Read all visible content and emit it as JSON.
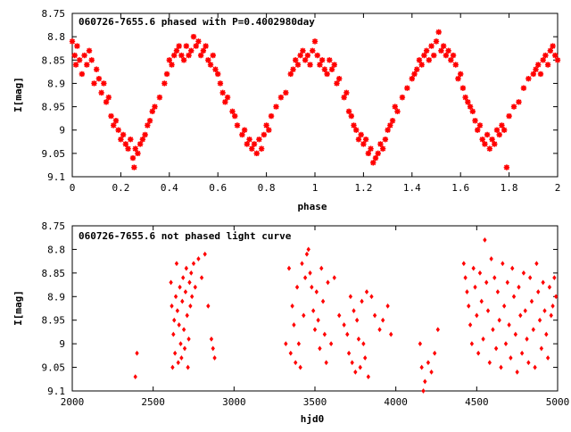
{
  "chart_data": [
    {
      "type": "scatter",
      "title": "060726-7655.6 phased with P=0.4002980day",
      "xlabel": "phase",
      "ylabel": "I[mag]",
      "xlim": [
        0,
        2
      ],
      "ylim": [
        8.75,
        9.1
      ],
      "y_inverted": true,
      "grid": false,
      "marker_color": "#ff0000",
      "marker": "star",
      "x_ticks": [
        0,
        0.2,
        0.4,
        0.6,
        0.8,
        1,
        1.2,
        1.4,
        1.6,
        1.8,
        2
      ],
      "y_ticks": [
        8.75,
        8.8,
        8.85,
        8.9,
        8.95,
        9,
        9.05,
        9.1
      ],
      "x_tick_labels": [
        "0",
        "0.2",
        "0.4",
        "0.6",
        "0.8",
        "1",
        "1.2",
        "1.4",
        "1.6",
        "1.8",
        "2"
      ],
      "y_tick_labels": [
        "8.75",
        "8.8",
        "8.85",
        "8.9",
        "8.95",
        "9",
        "9.05",
        "9.1"
      ],
      "points": [
        [
          0.0,
          8.81
        ],
        [
          0.01,
          8.84
        ],
        [
          0.015,
          8.86
        ],
        [
          0.02,
          8.82
        ],
        [
          0.03,
          8.85
        ],
        [
          0.04,
          8.88
        ],
        [
          0.05,
          8.84
        ],
        [
          0.06,
          8.86
        ],
        [
          0.07,
          8.83
        ],
        [
          0.08,
          8.85
        ],
        [
          0.09,
          8.9
        ],
        [
          0.1,
          8.87
        ],
        [
          0.11,
          8.89
        ],
        [
          0.12,
          8.92
        ],
        [
          0.13,
          8.9
        ],
        [
          0.14,
          8.94
        ],
        [
          0.15,
          8.93
        ],
        [
          0.16,
          8.97
        ],
        [
          0.17,
          8.99
        ],
        [
          0.18,
          8.98
        ],
        [
          0.19,
          9.0
        ],
        [
          0.2,
          9.02
        ],
        [
          0.21,
          9.01
        ],
        [
          0.22,
          9.03
        ],
        [
          0.23,
          9.04
        ],
        [
          0.24,
          9.02
        ],
        [
          0.25,
          9.06
        ],
        [
          0.255,
          9.08
        ],
        [
          0.26,
          9.04
        ],
        [
          0.27,
          9.05
        ],
        [
          0.28,
          9.03
        ],
        [
          0.29,
          9.02
        ],
        [
          0.3,
          9.01
        ],
        [
          0.31,
          8.99
        ],
        [
          0.32,
          8.98
        ],
        [
          0.33,
          8.96
        ],
        [
          0.34,
          8.95
        ],
        [
          0.36,
          8.93
        ],
        [
          0.38,
          8.9
        ],
        [
          0.39,
          8.88
        ],
        [
          0.4,
          8.85
        ],
        [
          0.41,
          8.86
        ],
        [
          0.42,
          8.84
        ],
        [
          0.43,
          8.83
        ],
        [
          0.44,
          8.82
        ],
        [
          0.45,
          8.84
        ],
        [
          0.46,
          8.85
        ],
        [
          0.47,
          8.82
        ],
        [
          0.48,
          8.84
        ],
        [
          0.49,
          8.83
        ],
        [
          0.5,
          8.8
        ],
        [
          0.51,
          8.82
        ],
        [
          0.52,
          8.81
        ],
        [
          0.53,
          8.84
        ],
        [
          0.54,
          8.83
        ],
        [
          0.55,
          8.82
        ],
        [
          0.56,
          8.85
        ],
        [
          0.57,
          8.86
        ],
        [
          0.58,
          8.84
        ],
        [
          0.59,
          8.87
        ],
        [
          0.6,
          8.88
        ],
        [
          0.61,
          8.9
        ],
        [
          0.62,
          8.92
        ],
        [
          0.63,
          8.94
        ],
        [
          0.64,
          8.93
        ],
        [
          0.66,
          8.96
        ],
        [
          0.67,
          8.97
        ],
        [
          0.68,
          8.99
        ],
        [
          0.7,
          9.01
        ],
        [
          0.71,
          9.0
        ],
        [
          0.72,
          9.03
        ],
        [
          0.73,
          9.02
        ],
        [
          0.74,
          9.04
        ],
        [
          0.75,
          9.03
        ],
        [
          0.76,
          9.05
        ],
        [
          0.77,
          9.02
        ],
        [
          0.78,
          9.04
        ],
        [
          0.79,
          9.01
        ],
        [
          0.8,
          8.99
        ],
        [
          0.81,
          9.0
        ],
        [
          0.82,
          8.97
        ],
        [
          0.84,
          8.95
        ],
        [
          0.86,
          8.93
        ],
        [
          0.88,
          8.92
        ],
        [
          0.9,
          8.88
        ],
        [
          0.91,
          8.87
        ],
        [
          0.92,
          8.85
        ],
        [
          0.93,
          8.86
        ],
        [
          0.94,
          8.84
        ],
        [
          0.95,
          8.83
        ],
        [
          0.96,
          8.85
        ],
        [
          0.97,
          8.84
        ],
        [
          0.98,
          8.86
        ],
        [
          0.99,
          8.83
        ],
        [
          1.0,
          8.81
        ],
        [
          1.01,
          8.84
        ],
        [
          1.02,
          8.86
        ],
        [
          1.03,
          8.85
        ],
        [
          1.04,
          8.87
        ],
        [
          1.05,
          8.88
        ],
        [
          1.06,
          8.85
        ],
        [
          1.07,
          8.87
        ],
        [
          1.08,
          8.86
        ],
        [
          1.09,
          8.9
        ],
        [
          1.1,
          8.89
        ],
        [
          1.12,
          8.93
        ],
        [
          1.13,
          8.92
        ],
        [
          1.14,
          8.96
        ],
        [
          1.15,
          8.97
        ],
        [
          1.16,
          8.99
        ],
        [
          1.17,
          9.0
        ],
        [
          1.18,
          9.02
        ],
        [
          1.19,
          9.01
        ],
        [
          1.2,
          9.03
        ],
        [
          1.21,
          9.02
        ],
        [
          1.22,
          9.05
        ],
        [
          1.23,
          9.04
        ],
        [
          1.24,
          9.07
        ],
        [
          1.25,
          9.06
        ],
        [
          1.26,
          9.05
        ],
        [
          1.27,
          9.03
        ],
        [
          1.28,
          9.04
        ],
        [
          1.29,
          9.02
        ],
        [
          1.3,
          9.0
        ],
        [
          1.31,
          8.99
        ],
        [
          1.32,
          8.98
        ],
        [
          1.33,
          8.95
        ],
        [
          1.34,
          8.96
        ],
        [
          1.36,
          8.93
        ],
        [
          1.38,
          8.91
        ],
        [
          1.4,
          8.89
        ],
        [
          1.41,
          8.88
        ],
        [
          1.42,
          8.87
        ],
        [
          1.43,
          8.85
        ],
        [
          1.44,
          8.86
        ],
        [
          1.45,
          8.84
        ],
        [
          1.46,
          8.83
        ],
        [
          1.47,
          8.85
        ],
        [
          1.48,
          8.82
        ],
        [
          1.49,
          8.84
        ],
        [
          1.5,
          8.81
        ],
        [
          1.51,
          8.79
        ],
        [
          1.52,
          8.83
        ],
        [
          1.53,
          8.82
        ],
        [
          1.54,
          8.84
        ],
        [
          1.55,
          8.83
        ],
        [
          1.56,
          8.85
        ],
        [
          1.57,
          8.84
        ],
        [
          1.58,
          8.86
        ],
        [
          1.59,
          8.89
        ],
        [
          1.6,
          8.88
        ],
        [
          1.61,
          8.91
        ],
        [
          1.62,
          8.93
        ],
        [
          1.63,
          8.94
        ],
        [
          1.64,
          8.95
        ],
        [
          1.65,
          8.96
        ],
        [
          1.66,
          8.98
        ],
        [
          1.67,
          9.0
        ],
        [
          1.68,
          8.99
        ],
        [
          1.69,
          9.02
        ],
        [
          1.7,
          9.03
        ],
        [
          1.71,
          9.01
        ],
        [
          1.72,
          9.04
        ],
        [
          1.73,
          9.02
        ],
        [
          1.74,
          9.03
        ],
        [
          1.75,
          9.0
        ],
        [
          1.76,
          9.01
        ],
        [
          1.77,
          8.99
        ],
        [
          1.78,
          9.0
        ],
        [
          1.79,
          9.08
        ],
        [
          1.8,
          8.97
        ],
        [
          1.82,
          8.95
        ],
        [
          1.84,
          8.94
        ],
        [
          1.86,
          8.91
        ],
        [
          1.88,
          8.89
        ],
        [
          1.9,
          8.88
        ],
        [
          1.91,
          8.87
        ],
        [
          1.92,
          8.86
        ],
        [
          1.93,
          8.88
        ],
        [
          1.94,
          8.85
        ],
        [
          1.95,
          8.84
        ],
        [
          1.96,
          8.86
        ],
        [
          1.97,
          8.83
        ],
        [
          1.98,
          8.82
        ],
        [
          1.99,
          8.84
        ],
        [
          2.0,
          8.85
        ]
      ]
    },
    {
      "type": "scatter",
      "title": "060726-7655.6 not phased light curve",
      "xlabel": "hjd0",
      "ylabel": "I[mag]",
      "xlim": [
        2000,
        5000
      ],
      "ylim": [
        8.75,
        9.1
      ],
      "y_inverted": true,
      "grid": false,
      "marker_color": "#ff0000",
      "marker": "diamond",
      "x_ticks": [
        2000,
        2500,
        3000,
        3500,
        4000,
        4500,
        5000
      ],
      "y_ticks": [
        8.75,
        8.8,
        8.85,
        8.9,
        8.95,
        9,
        9.05,
        9.1
      ],
      "x_tick_labels": [
        "2000",
        "2500",
        "3000",
        "3500",
        "4000",
        "4500",
        "5000"
      ],
      "y_tick_labels": [
        "8.75",
        "8.8",
        "8.85",
        "8.9",
        "8.95",
        "9",
        "9.05",
        "9.1"
      ],
      "points": [
        [
          2390,
          9.07
        ],
        [
          2400,
          9.02
        ],
        [
          2610,
          8.87
        ],
        [
          2615,
          8.92
        ],
        [
          2620,
          9.05
        ],
        [
          2625,
          8.98
        ],
        [
          2630,
          8.95
        ],
        [
          2635,
          9.02
        ],
        [
          2640,
          8.9
        ],
        [
          2645,
          8.83
        ],
        [
          2650,
          8.93
        ],
        [
          2655,
          9.04
        ],
        [
          2660,
          8.96
        ],
        [
          2665,
          8.88
        ],
        [
          2670,
          9.0
        ],
        [
          2675,
          9.03
        ],
        [
          2680,
          8.91
        ],
        [
          2685,
          8.86
        ],
        [
          2690,
          8.97
        ],
        [
          2695,
          9.01
        ],
        [
          2700,
          8.89
        ],
        [
          2705,
          8.84
        ],
        [
          2710,
          8.94
        ],
        [
          2715,
          9.05
        ],
        [
          2720,
          8.99
        ],
        [
          2725,
          8.87
        ],
        [
          2730,
          8.92
        ],
        [
          2735,
          8.85
        ],
        [
          2740,
          8.9
        ],
        [
          2750,
          8.83
        ],
        [
          2760,
          8.88
        ],
        [
          2780,
          8.82
        ],
        [
          2800,
          8.86
        ],
        [
          2820,
          8.81
        ],
        [
          2840,
          8.92
        ],
        [
          2860,
          8.99
        ],
        [
          2870,
          9.01
        ],
        [
          2880,
          9.03
        ],
        [
          3320,
          9.0
        ],
        [
          3340,
          8.84
        ],
        [
          3350,
          9.02
        ],
        [
          3360,
          8.92
        ],
        [
          3370,
          8.96
        ],
        [
          3380,
          9.04
        ],
        [
          3390,
          8.88
        ],
        [
          3400,
          9.0
        ],
        [
          3410,
          9.05
        ],
        [
          3420,
          8.83
        ],
        [
          3430,
          8.94
        ],
        [
          3440,
          8.86
        ],
        [
          3450,
          8.81
        ],
        [
          3460,
          8.8
        ],
        [
          3470,
          8.85
        ],
        [
          3480,
          8.88
        ],
        [
          3490,
          8.93
        ],
        [
          3500,
          8.97
        ],
        [
          3510,
          8.89
        ],
        [
          3520,
          8.95
        ],
        [
          3530,
          9.01
        ],
        [
          3540,
          8.84
        ],
        [
          3550,
          8.91
        ],
        [
          3560,
          8.98
        ],
        [
          3570,
          9.04
        ],
        [
          3580,
          8.87
        ],
        [
          3600,
          9.0
        ],
        [
          3620,
          8.86
        ],
        [
          3650,
          8.94
        ],
        [
          3680,
          8.96
        ],
        [
          3700,
          8.98
        ],
        [
          3710,
          9.02
        ],
        [
          3720,
          8.9
        ],
        [
          3730,
          9.04
        ],
        [
          3740,
          8.93
        ],
        [
          3750,
          9.06
        ],
        [
          3760,
          8.95
        ],
        [
          3770,
          8.99
        ],
        [
          3780,
          9.05
        ],
        [
          3790,
          8.91
        ],
        [
          3800,
          9.0
        ],
        [
          3810,
          9.03
        ],
        [
          3820,
          8.89
        ],
        [
          3830,
          9.07
        ],
        [
          3850,
          8.9
        ],
        [
          3870,
          8.94
        ],
        [
          3900,
          8.97
        ],
        [
          3920,
          8.95
        ],
        [
          3950,
          8.92
        ],
        [
          3970,
          8.98
        ],
        [
          4150,
          9.0
        ],
        [
          4160,
          9.05
        ],
        [
          4170,
          9.1
        ],
        [
          4180,
          9.08
        ],
        [
          4200,
          9.04
        ],
        [
          4220,
          9.06
        ],
        [
          4240,
          9.02
        ],
        [
          4260,
          8.97
        ],
        [
          4420,
          8.83
        ],
        [
          4430,
          8.86
        ],
        [
          4440,
          8.89
        ],
        [
          4450,
          8.92
        ],
        [
          4460,
          8.96
        ],
        [
          4470,
          9.0
        ],
        [
          4480,
          8.84
        ],
        [
          4490,
          8.88
        ],
        [
          4500,
          8.94
        ],
        [
          4510,
          9.02
        ],
        [
          4520,
          8.85
        ],
        [
          4530,
          8.91
        ],
        [
          4540,
          8.99
        ],
        [
          4550,
          8.78
        ],
        [
          4560,
          8.87
        ],
        [
          4570,
          8.93
        ],
        [
          4580,
          9.04
        ],
        [
          4590,
          8.82
        ],
        [
          4600,
          8.97
        ],
        [
          4610,
          8.86
        ],
        [
          4620,
          9.01
        ],
        [
          4630,
          8.89
        ],
        [
          4640,
          8.95
        ],
        [
          4650,
          9.05
        ],
        [
          4660,
          8.83
        ],
        [
          4670,
          8.92
        ],
        [
          4680,
          9.0
        ],
        [
          4690,
          8.87
        ],
        [
          4700,
          8.96
        ],
        [
          4710,
          9.03
        ],
        [
          4720,
          8.84
        ],
        [
          4730,
          8.9
        ],
        [
          4740,
          8.98
        ],
        [
          4750,
          9.06
        ],
        [
          4760,
          8.88
        ],
        [
          4770,
          8.94
        ],
        [
          4780,
          9.02
        ],
        [
          4790,
          8.85
        ],
        [
          4800,
          8.93
        ],
        [
          4810,
          8.99
        ],
        [
          4820,
          9.04
        ],
        [
          4830,
          8.86
        ],
        [
          4840,
          8.91
        ],
        [
          4850,
          8.97
        ],
        [
          4860,
          9.05
        ],
        [
          4870,
          8.83
        ],
        [
          4880,
          8.89
        ],
        [
          4890,
          8.95
        ],
        [
          4900,
          9.01
        ],
        [
          4910,
          8.87
        ],
        [
          4920,
          8.93
        ],
        [
          4930,
          8.98
        ],
        [
          4940,
          9.03
        ],
        [
          4950,
          8.88
        ],
        [
          4960,
          8.94
        ],
        [
          4970,
          8.92
        ],
        [
          4980,
          8.86
        ],
        [
          4990,
          8.9
        ]
      ]
    }
  ]
}
